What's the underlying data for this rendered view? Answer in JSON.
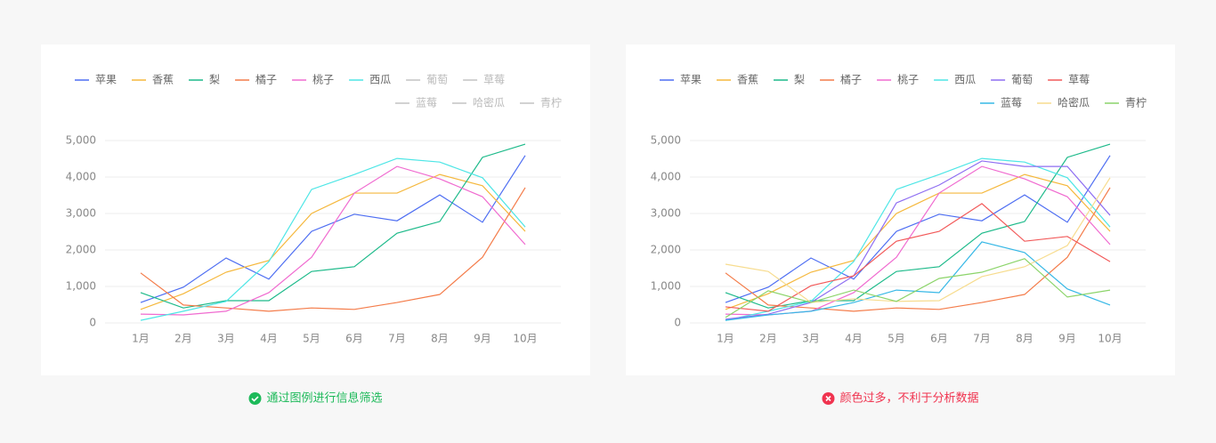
{
  "chart_data": [
    {
      "type": "line",
      "categories": [
        "1月",
        "2月",
        "3月",
        "4月",
        "5月",
        "6月",
        "7月",
        "8月",
        "9月",
        "10月"
      ],
      "ylim": [
        0,
        5000
      ],
      "yticks": [
        0,
        {
          "value": 1000,
          "label": "1,000"
        },
        {
          "value": 2000,
          "label": "2,000"
        },
        {
          "value": 3000,
          "label": "3,000"
        },
        {
          "value": 4000,
          "label": "4,000"
        },
        {
          "value": 5000,
          "label": "5,000"
        }
      ],
      "grid": true,
      "legend": "top",
      "caption": "通过图例进行信息筛选",
      "caption_status": "ok",
      "series": [
        {
          "name": "苹果",
          "color": "#4e6ef2",
          "values": [
            560,
            980,
            1780,
            1200,
            2510,
            2980,
            2800,
            3510,
            2760,
            4590
          ]
        },
        {
          "name": "香蕉",
          "color": "#f5b83d",
          "values": [
            370,
            800,
            1390,
            1710,
            3000,
            3560,
            3560,
            4070,
            3760,
            2510
          ]
        },
        {
          "name": "梨",
          "color": "#1dba8a",
          "values": [
            830,
            410,
            610,
            610,
            1410,
            1540,
            2460,
            2780,
            4540,
            4900
          ]
        },
        {
          "name": "橘子",
          "color": "#f47c4a",
          "values": [
            1370,
            490,
            410,
            320,
            410,
            370,
            560,
            780,
            1800,
            3710
          ]
        },
        {
          "name": "桃子",
          "color": "#f06bd0",
          "values": [
            240,
            220,
            320,
            830,
            1800,
            3560,
            4290,
            3950,
            3460,
            2150
          ]
        },
        {
          "name": "西瓜",
          "color": "#4ee6e6",
          "values": [
            70,
            320,
            590,
            1680,
            3660,
            4070,
            4510,
            4410,
            3980,
            2630
          ]
        },
        {
          "name": "葡萄",
          "visible": false
        },
        {
          "name": "草莓",
          "visible": false
        },
        {
          "name": "蓝莓",
          "visible": false
        },
        {
          "name": "哈密瓜",
          "visible": false
        },
        {
          "name": "青柠",
          "visible": false
        }
      ]
    },
    {
      "type": "line",
      "categories": [
        "1月",
        "2月",
        "3月",
        "4月",
        "5月",
        "6月",
        "7月",
        "8月",
        "9月",
        "10月"
      ],
      "ylim": [
        0,
        5000
      ],
      "yticks": [
        0,
        {
          "value": 1000,
          "label": "1,000"
        },
        {
          "value": 2000,
          "label": "2,000"
        },
        {
          "value": 3000,
          "label": "3,000"
        },
        {
          "value": 4000,
          "label": "4,000"
        },
        {
          "value": 5000,
          "label": "5,000"
        }
      ],
      "grid": true,
      "legend": "top",
      "caption": "颜色过多，不利于分析数据",
      "caption_status": "error",
      "series": [
        {
          "name": "苹果",
          "color": "#4e6ef2",
          "values": [
            560,
            980,
            1780,
            1200,
            2510,
            2980,
            2800,
            3510,
            2760,
            4590
          ]
        },
        {
          "name": "香蕉",
          "color": "#f5b83d",
          "values": [
            370,
            800,
            1390,
            1710,
            3000,
            3560,
            3560,
            4070,
            3760,
            2510
          ]
        },
        {
          "name": "梨",
          "color": "#1dba8a",
          "values": [
            830,
            410,
            610,
            610,
            1410,
            1540,
            2460,
            2780,
            4540,
            4900
          ]
        },
        {
          "name": "橘子",
          "color": "#f47c4a",
          "values": [
            1370,
            490,
            410,
            320,
            410,
            370,
            560,
            780,
            1800,
            3710
          ]
        },
        {
          "name": "桃子",
          "color": "#f06bd0",
          "values": [
            240,
            220,
            320,
            830,
            1800,
            3560,
            4290,
            3950,
            3460,
            2150
          ]
        },
        {
          "name": "西瓜",
          "color": "#4ee6e6",
          "values": [
            70,
            320,
            590,
            1680,
            3660,
            4070,
            4510,
            4410,
            3980,
            2630
          ]
        },
        {
          "name": "葡萄",
          "color": "#8e6ef2",
          "values": [
            100,
            240,
            560,
            1290,
            3290,
            3780,
            4440,
            4290,
            4290,
            2950
          ]
        },
        {
          "name": "草莓",
          "color": "#f25a5a",
          "values": [
            440,
            320,
            1020,
            1290,
            2240,
            2510,
            3270,
            2240,
            2370,
            1680
          ]
        },
        {
          "name": "蓝莓",
          "color": "#37b8e6",
          "values": [
            70,
            220,
            320,
            560,
            900,
            830,
            2220,
            1930,
            930,
            490
          ]
        },
        {
          "name": "哈密瓜",
          "color": "#f7dc8e",
          "values": [
            1610,
            1410,
            560,
            660,
            590,
            610,
            1270,
            1540,
            2120,
            3980
          ]
        },
        {
          "name": "青柠",
          "color": "#8cd46a",
          "values": [
            150,
            880,
            560,
            900,
            590,
            1220,
            1390,
            1760,
            710,
            900
          ]
        }
      ]
    }
  ]
}
